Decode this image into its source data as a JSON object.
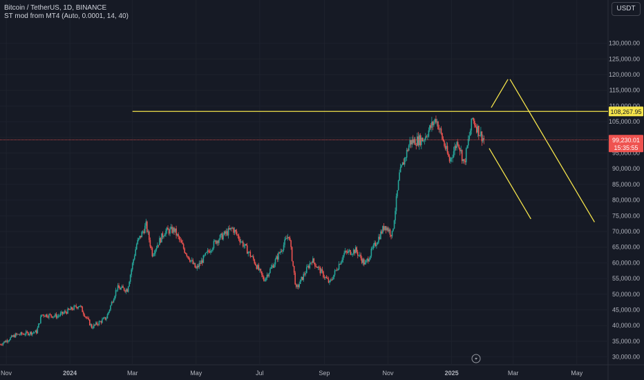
{
  "header": {
    "title": "Bitcoin / TetherUS, 1D, BINANCE",
    "indicator": "ST mod from MT4 (Auto, 0.0001, 14, 40)",
    "currency": "USDT"
  },
  "colors": {
    "background": "#161a25",
    "up": "#26a69a",
    "down": "#ef5350",
    "drawing": "#f5e44b",
    "price_line": "#ef5350"
  },
  "chart_data": {
    "type": "candlestick",
    "ylim": [
      27500,
      138500
    ],
    "y_ticks": [
      30000,
      35000,
      40000,
      45000,
      50000,
      55000,
      60000,
      65000,
      70000,
      75000,
      80000,
      85000,
      90000,
      95000,
      100000,
      105000,
      110000,
      115000,
      120000,
      125000,
      130000
    ],
    "y_tick_labels": [
      "30,000.00",
      "35,000.00",
      "40,000.00",
      "45,000.00",
      "50,000.00",
      "55,000.00",
      "60,000.00",
      "65,000.00",
      "70,000.00",
      "75,000.00",
      "80,000.00",
      "85,000.00",
      "90,000.00",
      "95,000.00",
      "100,000.00",
      "105,000.00",
      "110,000.00",
      "115,000.00",
      "120,000.00",
      "125,000.00",
      "130,000.00"
    ],
    "x_range": [
      "2023-10-26",
      "2025-05-31"
    ],
    "x_ticks": [
      {
        "date": "2023-11-01",
        "label": "Nov",
        "bold": false
      },
      {
        "date": "2024-01-01",
        "label": "2024",
        "bold": true
      },
      {
        "date": "2024-03-01",
        "label": "Mar",
        "bold": false
      },
      {
        "date": "2024-05-01",
        "label": "May",
        "bold": false
      },
      {
        "date": "2024-07-01",
        "label": "Jul",
        "bold": false
      },
      {
        "date": "2024-09-01",
        "label": "Sep",
        "bold": false
      },
      {
        "date": "2024-11-01",
        "label": "Nov",
        "bold": false
      },
      {
        "date": "2025-01-01",
        "label": "2025",
        "bold": true
      },
      {
        "date": "2025-03-01",
        "label": "Mar",
        "bold": false
      },
      {
        "date": "2025-05-01",
        "label": "May",
        "bold": false
      }
    ],
    "price_path": [
      [
        "2023-10-26",
        34000
      ],
      [
        "2023-11-10",
        37000
      ],
      [
        "2023-11-30",
        38000
      ],
      [
        "2023-12-05",
        43500
      ],
      [
        "2023-12-20",
        43000
      ],
      [
        "2024-01-10",
        46500
      ],
      [
        "2024-01-22",
        39500
      ],
      [
        "2024-02-05",
        42500
      ],
      [
        "2024-02-15",
        52000
      ],
      [
        "2024-02-25",
        51500
      ],
      [
        "2024-03-05",
        66000
      ],
      [
        "2024-03-14",
        72000
      ],
      [
        "2024-03-20",
        63000
      ],
      [
        "2024-04-01",
        70000
      ],
      [
        "2024-04-10",
        70500
      ],
      [
        "2024-04-20",
        64000
      ],
      [
        "2024-05-01",
        58000
      ],
      [
        "2024-05-20",
        67000
      ],
      [
        "2024-06-05",
        71000
      ],
      [
        "2024-06-25",
        61000
      ],
      [
        "2024-07-05",
        54500
      ],
      [
        "2024-07-15",
        60000
      ],
      [
        "2024-07-29",
        69000
      ],
      [
        "2024-08-05",
        51500
      ],
      [
        "2024-08-20",
        61000
      ],
      [
        "2024-09-06",
        53500
      ],
      [
        "2024-09-20",
        63000
      ],
      [
        "2024-10-01",
        64000
      ],
      [
        "2024-10-10",
        59500
      ],
      [
        "2024-10-29",
        72000
      ],
      [
        "2024-11-05",
        69000
      ],
      [
        "2024-11-12",
        88000
      ],
      [
        "2024-11-22",
        98500
      ],
      [
        "2024-12-05",
        99500
      ],
      [
        "2024-12-17",
        106000
      ],
      [
        "2024-12-30",
        92500
      ],
      [
        "2025-01-07",
        99000
      ],
      [
        "2025-01-13",
        91500
      ],
      [
        "2025-01-21",
        106000
      ],
      [
        "2025-01-27",
        102000
      ],
      [
        "2025-02-01",
        99230
      ]
    ],
    "drawings": [
      {
        "type": "horizontal",
        "y": 108267.95,
        "from": "2024-03-01"
      },
      {
        "type": "trend",
        "points": [
          [
            "2025-02-08",
            109500
          ],
          [
            "2025-02-24",
            118500
          ]
        ]
      },
      {
        "type": "trend",
        "points": [
          [
            "2025-02-26",
            118500
          ],
          [
            "2025-05-18",
            73000
          ]
        ]
      },
      {
        "type": "trend",
        "points": [
          [
            "2025-02-06",
            96500
          ],
          [
            "2025-03-18",
            74000
          ]
        ]
      }
    ],
    "price_line": 99230.01
  },
  "price_labels": {
    "level": "108,267.95",
    "last": "99,230.01",
    "countdown": "15:35:55"
  }
}
